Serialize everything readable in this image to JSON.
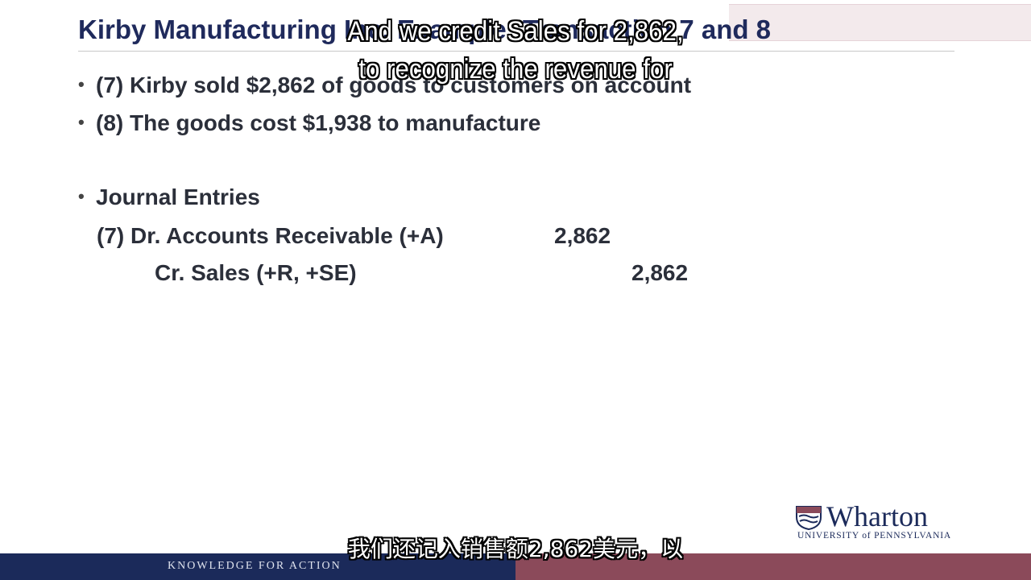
{
  "slide": {
    "title": "Kirby Manufacturing Inc. Example: Transaction 7 and 8",
    "bullets": [
      "(7) Kirby sold $2,862 of goods to customers on account",
      "(8) The goods cost $1,938 to manufacture",
      "Journal Entries"
    ],
    "journal": {
      "debit_label": "(7) Dr. Accounts Receivable (+A)",
      "debit_amount": "2,862",
      "credit_label": "Cr. Sales (+R, +SE)",
      "credit_amount": "2,862"
    }
  },
  "branding": {
    "logo_name": "Wharton",
    "logo_sub": "UNIVERSITY of PENNSYLVANIA",
    "tagline": "KNOWLEDGE FOR ACTION",
    "navy": "#1b2a5a",
    "maroon": "#8b4a5a"
  },
  "captions": {
    "english_line1": "And we credit Sales for 2,862,",
    "english_line2": "to recognize the revenue for",
    "chinese": "我们还记入销售额2,862美元，以"
  }
}
